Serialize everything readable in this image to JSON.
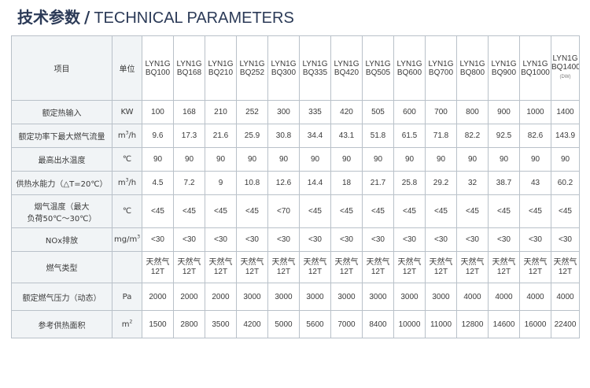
{
  "title": {
    "cn": "技术参数",
    "slash": "/",
    "en": "TECHNICAL PARAMETERS"
  },
  "table": {
    "header": {
      "item_label": "项目",
      "unit_label": "单位",
      "models": [
        {
          "line1": "LYN1G",
          "line2": "BQ100",
          "note": ""
        },
        {
          "line1": "LYN1G",
          "line2": "BQ168",
          "note": ""
        },
        {
          "line1": "LYN1G",
          "line2": "BQ210",
          "note": ""
        },
        {
          "line1": "LYN1G",
          "line2": "BQ252",
          "note": ""
        },
        {
          "line1": "LYN1G",
          "line2": "BQ300",
          "note": ""
        },
        {
          "line1": "LYN1G",
          "line2": "BQ335",
          "note": ""
        },
        {
          "line1": "LYN1G",
          "line2": "BQ420",
          "note": ""
        },
        {
          "line1": "LYN1G",
          "line2": "BQ505",
          "note": ""
        },
        {
          "line1": "LYN1G",
          "line2": "BQ600",
          "note": ""
        },
        {
          "line1": "LYN1G",
          "line2": "BQ700",
          "note": ""
        },
        {
          "line1": "LYN1G",
          "line2": "BQ800",
          "note": ""
        },
        {
          "line1": "LYN1G",
          "line2": "BQ900",
          "note": ""
        },
        {
          "line1": "LYN1G",
          "line2": "BQ1000",
          "note": ""
        },
        {
          "line1": "LYN1G",
          "line2": "BQ1400",
          "note": "(DW)"
        }
      ]
    },
    "rows": [
      {
        "label": [
          "额定热输入"
        ],
        "unit": {
          "base": "KW",
          "sup": "",
          "rest": ""
        },
        "values": [
          "100",
          "168",
          "210",
          "252",
          "300",
          "335",
          "420",
          "505",
          "600",
          "700",
          "800",
          "900",
          "1000",
          "1400"
        ]
      },
      {
        "label": [
          "额定功率下最大燃气流量"
        ],
        "unit": {
          "base": "m",
          "sup": "3",
          "rest": "/h"
        },
        "values": [
          "9.6",
          "17.3",
          "21.6",
          "25.9",
          "30.8",
          "34.4",
          "43.1",
          "51.8",
          "61.5",
          "71.8",
          "82.2",
          "92.5",
          "82.6",
          "143.9"
        ]
      },
      {
        "label": [
          "最高出水温度"
        ],
        "unit": {
          "base": "℃",
          "sup": "",
          "rest": ""
        },
        "values": [
          "90",
          "90",
          "90",
          "90",
          "90",
          "90",
          "90",
          "90",
          "90",
          "90",
          "90",
          "90",
          "90",
          "90"
        ]
      },
      {
        "label": [
          "供热水能力（△T=20℃）"
        ],
        "unit": {
          "base": "m",
          "sup": "3",
          "rest": "/h"
        },
        "values": [
          "4.5",
          "7.2",
          "9",
          "10.8",
          "12.6",
          "14.4",
          "18",
          "21.7",
          "25.8",
          "29.2",
          "32",
          "38.7",
          "43",
          "60.2"
        ]
      },
      {
        "label": [
          "烟气温度（最大",
          "负荷50℃～30℃）"
        ],
        "unit": {
          "base": "℃",
          "sup": "",
          "rest": ""
        },
        "values": [
          "<45",
          "<45",
          "<45",
          "<45",
          "<70",
          "<45",
          "<45",
          "<45",
          "<45",
          "<45",
          "<45",
          "<45",
          "<45",
          "<45"
        ]
      },
      {
        "label": [
          "NOx排放"
        ],
        "unit": {
          "base": "mg/m",
          "sup": "3",
          "rest": ""
        },
        "values": [
          "<30",
          "<30",
          "<30",
          "<30",
          "<30",
          "<30",
          "<30",
          "<30",
          "<30",
          "<30",
          "<30",
          "<30",
          "<30",
          "<30"
        ]
      }
    ],
    "gas_row": {
      "label": "燃气类型",
      "unit": "",
      "values": [
        {
          "type": "天然气",
          "pressure": "12T"
        },
        {
          "type": "天然气",
          "pressure": "12T"
        },
        {
          "type": "天然气",
          "pressure": "12T"
        },
        {
          "type": "天然气",
          "pressure": "12T"
        },
        {
          "type": "天然气",
          "pressure": "12T"
        },
        {
          "type": "天然气",
          "pressure": "12T"
        },
        {
          "type": "天然气",
          "pressure": "12T"
        },
        {
          "type": "天然气",
          "pressure": "12T"
        },
        {
          "type": "天然气",
          "pressure": "12T"
        },
        {
          "type": "天然气",
          "pressure": "12T"
        },
        {
          "type": "天然气",
          "pressure": "12T"
        },
        {
          "type": "天然气",
          "pressure": "12T"
        },
        {
          "type": "天然气",
          "pressure": "12T"
        },
        {
          "type": "天然气",
          "pressure": "12T"
        }
      ]
    },
    "rows_after": [
      {
        "label": [
          "额定燃气压力（动态）"
        ],
        "unit": {
          "base": "Pa",
          "sup": "",
          "rest": ""
        },
        "values": [
          "2000",
          "2000",
          "2000",
          "3000",
          "3000",
          "3000",
          "3000",
          "3000",
          "3000",
          "3000",
          "4000",
          "4000",
          "4000",
          "4000"
        ]
      },
      {
        "label": [
          "参考供热面积"
        ],
        "unit": {
          "base": "m",
          "sup": "2",
          "rest": ""
        },
        "values": [
          "1500",
          "2800",
          "3500",
          "4200",
          "5000",
          "5600",
          "7000",
          "8400",
          "10000",
          "11000",
          "12800",
          "14600",
          "16000",
          "22400"
        ]
      }
    ]
  }
}
